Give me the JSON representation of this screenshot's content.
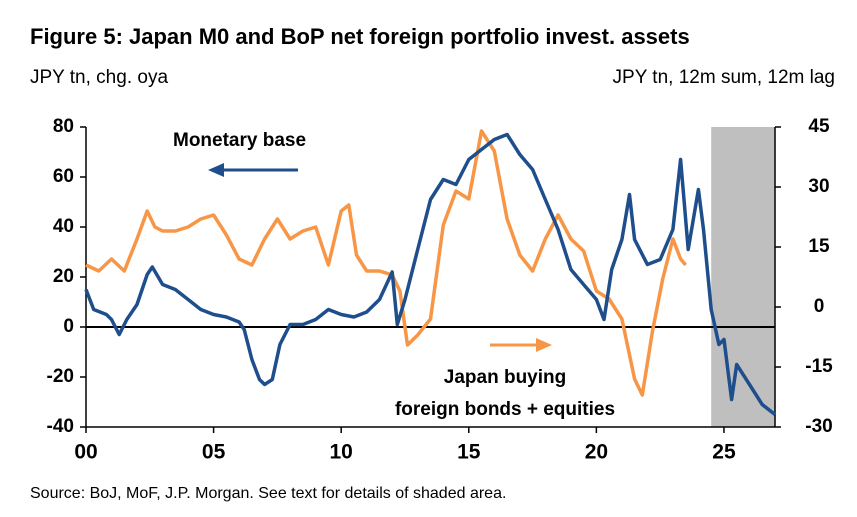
{
  "chart_data": {
    "type": "line",
    "title": "Figure 5: Japan M0 and BoP net foreign portfolio invest. assets",
    "y_label": "JPY tn, chg. oya",
    "y2_label": "JPY tn, 12m sum, 12m lag",
    "source": "Source: BoJ, MoF, J.P. Morgan. See text for details of shaded area.",
    "annotations": [
      "Monetary base",
      "Japan buying",
      "foreign bonds + equities"
    ],
    "xlim": [
      0,
      27
    ],
    "xticks": [
      {
        "value": 0,
        "label": "00"
      },
      {
        "value": 5,
        "label": "05"
      },
      10,
      15,
      20,
      25
    ],
    "ylim": [
      -40,
      80
    ],
    "yticks": [
      -40,
      -20,
      0,
      20,
      40,
      60,
      80
    ],
    "y2lim": [
      -30,
      45
    ],
    "y2ticks": [
      -30,
      -15,
      0,
      15,
      30,
      45
    ],
    "shaded": [
      24.5,
      27
    ],
    "shade_color": "#bfbfbf",
    "series": [
      {
        "name": "Monetary base",
        "color": "#1f4e8c",
        "x": [
          0,
          0.3,
          0.8,
          1.0,
          1.3,
          1.6,
          2.0,
          2.4,
          2.6,
          3.0,
          3.5,
          4.0,
          4.5,
          5.0,
          5.5,
          6.0,
          6.2,
          6.5,
          6.8,
          7.0,
          7.3,
          7.6,
          8.0,
          8.5,
          9.0,
          9.5,
          10.0,
          10.5,
          11.0,
          11.5,
          12.0,
          12.2,
          12.5,
          13.0,
          13.5,
          14.0,
          14.5,
          15.0,
          15.5,
          16.0,
          16.5,
          17.0,
          17.5,
          18.0,
          18.5,
          19.0,
          19.5,
          20.0,
          20.3,
          20.6,
          21.0,
          21.3,
          21.5,
          22.0,
          22.5,
          23.0,
          23.3,
          23.6,
          24.0,
          24.2,
          24.5,
          24.8,
          25.0,
          25.3,
          25.5,
          26.0,
          26.5,
          27.0
        ],
        "values": [
          15,
          7,
          5,
          3,
          -3,
          3,
          9,
          21,
          24,
          17,
          15,
          11,
          7,
          5,
          4,
          2,
          -1,
          -13,
          -21,
          -23,
          -21,
          -7,
          1,
          1,
          3,
          7,
          5,
          4,
          6,
          11,
          22,
          1,
          11,
          31,
          51,
          59,
          57,
          67,
          71,
          75,
          77,
          69,
          63,
          51,
          39,
          23,
          17,
          11,
          3,
          23,
          35,
          53,
          35,
          25,
          27,
          39,
          67,
          31,
          55,
          39,
          7,
          -7,
          -5,
          -29,
          -15,
          -23,
          -31,
          -35
        ]
      },
      {
        "name": "Japan buying foreign bonds + equities",
        "color": "#f79646",
        "axis": "y2",
        "x": [
          0,
          0.5,
          1.0,
          1.5,
          2.0,
          2.4,
          2.7,
          3.0,
          3.5,
          4.0,
          4.5,
          5.0,
          5.5,
          6.0,
          6.5,
          7.0,
          7.5,
          8.0,
          8.5,
          9.0,
          9.5,
          10.0,
          10.3,
          10.6,
          11.0,
          11.5,
          12.0,
          12.3,
          12.6,
          13.0,
          13.5,
          14.0,
          14.5,
          15.0,
          15.5,
          16.0,
          16.5,
          17.0,
          17.5,
          18.0,
          18.5,
          19.0,
          19.5,
          20.0,
          20.5,
          21.0,
          21.5,
          21.8,
          22.2,
          22.6,
          23.0,
          23.3,
          23.5
        ],
        "values": [
          10.5,
          9,
          12,
          9,
          17,
          24,
          20,
          19,
          19,
          20,
          22,
          23,
          18,
          12,
          10.5,
          17,
          22,
          17,
          19,
          20,
          10.5,
          24,
          25.5,
          13,
          9,
          9,
          8,
          4,
          -9.5,
          -7,
          -3,
          20.5,
          29,
          27,
          44,
          39,
          22,
          13,
          9,
          17,
          23,
          17,
          14,
          4,
          2,
          -3,
          -18,
          -22,
          -6,
          7,
          17,
          12,
          10.5
        ]
      }
    ]
  }
}
